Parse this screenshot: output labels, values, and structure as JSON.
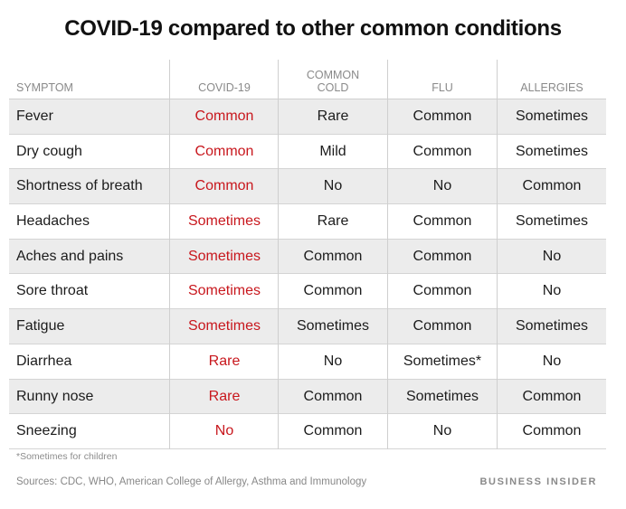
{
  "title": "COVID-19 compared to other common conditions",
  "headers": {
    "symptom": "SYMPTOM",
    "covid": "COVID-19",
    "cold_line1": "COMMON",
    "cold_line2": "COLD",
    "flu": "FLU",
    "allergies": "ALLERGIES"
  },
  "rows": [
    {
      "symptom": "Fever",
      "covid": "Common",
      "cold": "Rare",
      "flu": "Common",
      "allergies": "Sometimes"
    },
    {
      "symptom": "Dry cough",
      "covid": "Common",
      "cold": "Mild",
      "flu": "Common",
      "allergies": "Sometimes"
    },
    {
      "symptom": "Shortness of breath",
      "covid": "Common",
      "cold": "No",
      "flu": "No",
      "allergies": "Common"
    },
    {
      "symptom": "Headaches",
      "covid": "Sometimes",
      "cold": "Rare",
      "flu": "Common",
      "allergies": "Sometimes"
    },
    {
      "symptom": "Aches and pains",
      "covid": "Sometimes",
      "cold": "Common",
      "flu": "Common",
      "allergies": "No"
    },
    {
      "symptom": "Sore throat",
      "covid": "Sometimes",
      "cold": "Common",
      "flu": "Common",
      "allergies": "No"
    },
    {
      "symptom": "Fatigue",
      "covid": "Sometimes",
      "cold": "Sometimes",
      "flu": "Common",
      "allergies": "Sometimes"
    },
    {
      "symptom": "Diarrhea",
      "covid": "Rare",
      "cold": "No",
      "flu": "Sometimes*",
      "allergies": "No"
    },
    {
      "symptom": "Runny nose",
      "covid": "Rare",
      "cold": "Common",
      "flu": "Sometimes",
      "allergies": "Common"
    },
    {
      "symptom": "Sneezing",
      "covid": "No",
      "cold": "Common",
      "flu": "No",
      "allergies": "Common"
    }
  ],
  "footnote": "*Sometimes for children",
  "sources": "Sources: CDC, WHO, American College of Allergy, Asthma and Immunology",
  "brand": "BUSINESS INSIDER",
  "colors": {
    "covid_text": "#c8171d",
    "row_shade": "#ececec"
  }
}
